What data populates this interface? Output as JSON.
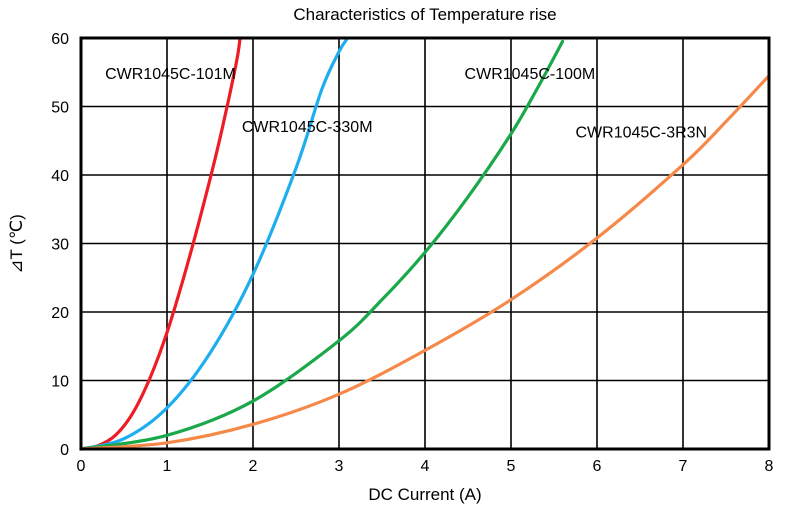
{
  "chart_data": {
    "type": "line",
    "title": "Characteristics of Temperature rise",
    "xlabel": "DC Current (A)",
    "ylabel": "⊿T (℃)",
    "xlim": [
      0,
      8
    ],
    "ylim": [
      0,
      60
    ],
    "xticks": [
      "0",
      "1",
      "2",
      "3",
      "4",
      "5",
      "6",
      "7",
      "8"
    ],
    "yticks": [
      "0",
      "10",
      "20",
      "30",
      "40",
      "50",
      "60"
    ],
    "grid": true,
    "legend": "inline labels",
    "series": [
      {
        "name": "CWR1045C-101M",
        "color": "#ee1c25",
        "x": [
          0,
          0.2,
          0.4,
          0.6,
          0.8,
          1.0,
          1.2,
          1.4,
          1.6,
          1.8,
          1.85
        ],
        "y": [
          0,
          0.5,
          2.0,
          5.2,
          10.3,
          17.0,
          25.3,
          34.5,
          44.5,
          56.0,
          60.0
        ]
      },
      {
        "name": "CWR1045C-330M",
        "color": "#1eaef0",
        "x": [
          0,
          0.5,
          1.0,
          1.5,
          2.0,
          2.5,
          2.8,
          3.0,
          3.1
        ],
        "y": [
          0,
          1.5,
          6.0,
          14.0,
          25.5,
          41.0,
          52.5,
          58.0,
          60.0
        ]
      },
      {
        "name": "CWR1045C-100M",
        "color": "#1aa84a",
        "x": [
          0,
          1.0,
          2.0,
          3.0,
          3.5,
          4.0,
          4.5,
          5.0,
          5.3,
          5.6
        ],
        "y": [
          0,
          2.0,
          7.0,
          15.8,
          21.8,
          28.7,
          36.8,
          46.0,
          52.5,
          59.5
        ]
      },
      {
        "name": "CWR1045C-3R3N",
        "color": "#f5894a",
        "x": [
          0,
          1.0,
          2.0,
          3.0,
          4.0,
          5.0,
          6.0,
          7.0,
          7.5,
          8.0
        ],
        "y": [
          0,
          0.9,
          3.6,
          8.0,
          14.4,
          21.8,
          30.8,
          41.5,
          47.8,
          54.5
        ]
      }
    ],
    "annotations": [
      "CWR1045C-101M",
      "CWR1045C-330M",
      "CWR1045C-100M",
      "CWR1045C-3R3N"
    ]
  }
}
